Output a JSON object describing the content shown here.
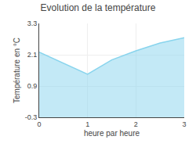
{
  "chart_data": {
    "type": "area",
    "title": "Evolution de la température",
    "xlabel": "heure par heure",
    "ylabel": "Température en °C",
    "x": [
      0,
      0.4,
      1.0,
      1.5,
      2.0,
      2.5,
      3.0
    ],
    "values": [
      2.2,
      1.85,
      1.35,
      1.9,
      2.25,
      2.55,
      2.75
    ],
    "color": "#88d4ed",
    "xlim": [
      0,
      3
    ],
    "ylim": [
      -0.3,
      3.3
    ],
    "xticks": [
      0,
      1,
      2,
      3
    ],
    "yticks": [
      -0.3,
      0.9,
      2.1,
      3.3
    ],
    "grid": true
  }
}
